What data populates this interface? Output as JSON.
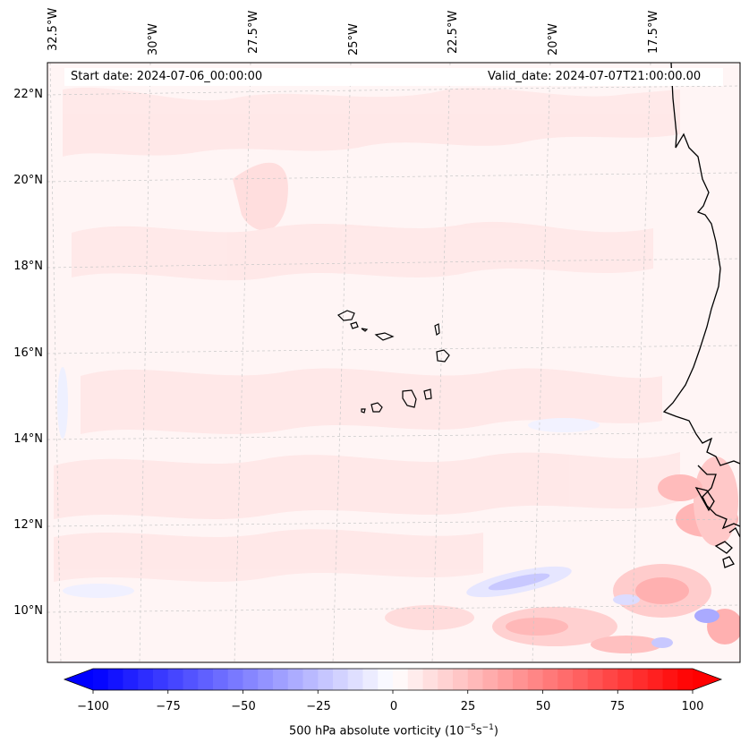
{
  "map": {
    "start_date": "Start date: 2024-07-06_00:00:00",
    "valid_date": "Valid_date: 2024-07-07T21:00:00.00",
    "lon_labels": [
      "32.5°W",
      "30°W",
      "27.5°W",
      "25°W",
      "22.5°W",
      "20°W",
      "17.5°W"
    ],
    "lat_labels": [
      "22°N",
      "20°N",
      "18°N",
      "16°N",
      "14°N",
      "12°N",
      "10°N"
    ],
    "field": "500 hPa absolute vorticity",
    "extent": {
      "lon_min": -33.0,
      "lon_max": -15.2,
      "lat_min": 8.8,
      "lat_max": 22.8
    }
  },
  "colorbar": {
    "ticks": [
      "−100",
      "−75",
      "−50",
      "−25",
      "0",
      "25",
      "50",
      "75",
      "100"
    ],
    "title_prefix": "500 hPa absolute vorticity (10",
    "exp1": "−5",
    "mid": "s",
    "exp2": "−1",
    "title_suffix": ")",
    "min": -100,
    "max": 100,
    "levels": 41,
    "colormap": "bwr",
    "low_color": "#0000ff",
    "mid_color": "#ffffff",
    "high_color": "#ff0000"
  },
  "colors": {
    "background_light_pink": "#fff2f2",
    "coast": "#000000",
    "gridline": "#bbbbbb"
  }
}
